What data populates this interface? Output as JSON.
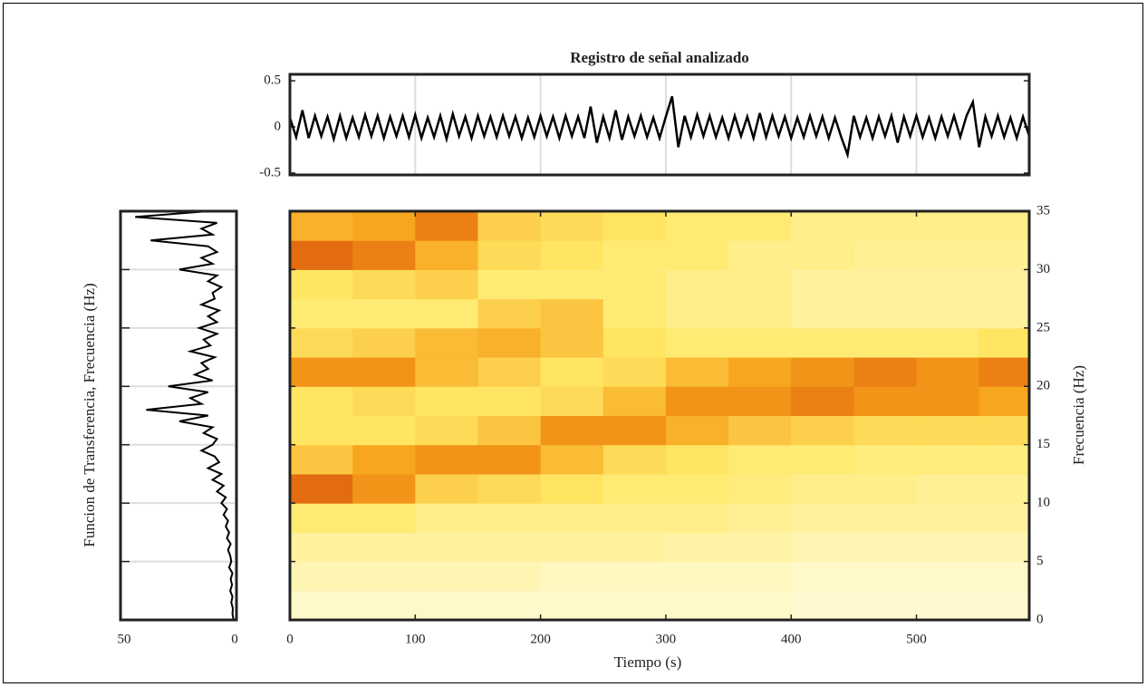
{
  "chart_data": [
    {
      "type": "line",
      "title": "Registro de señal analizado",
      "color": "#000000",
      "grid": true,
      "xlim": [
        0,
        590
      ],
      "ylim": [
        -0.52,
        0.57
      ],
      "yticks": [
        0.5,
        0,
        -0.5
      ],
      "x": [
        0,
        5,
        10,
        15,
        20,
        25,
        30,
        35,
        40,
        45,
        50,
        55,
        60,
        65,
        70,
        75,
        80,
        85,
        90,
        95,
        100,
        105,
        110,
        115,
        120,
        125,
        130,
        135,
        140,
        145,
        150,
        155,
        160,
        165,
        170,
        175,
        180,
        185,
        190,
        195,
        200,
        205,
        210,
        215,
        220,
        225,
        230,
        235,
        240,
        245,
        250,
        255,
        260,
        265,
        270,
        275,
        280,
        285,
        290,
        295,
        300,
        305,
        310,
        315,
        320,
        325,
        330,
        335,
        340,
        345,
        350,
        355,
        360,
        365,
        370,
        375,
        380,
        385,
        390,
        395,
        400,
        405,
        410,
        415,
        420,
        425,
        430,
        435,
        440,
        445,
        450,
        455,
        460,
        465,
        470,
        475,
        480,
        485,
        490,
        495,
        500,
        505,
        510,
        515,
        520,
        525,
        530,
        535,
        540,
        545,
        550,
        555,
        560,
        565,
        570,
        575,
        580,
        585,
        590
      ],
      "values": [
        0.1,
        -0.11,
        0.18,
        -0.12,
        0.12,
        -0.1,
        0.11,
        -0.13,
        0.12,
        -0.12,
        0.1,
        -0.11,
        0.13,
        -0.1,
        0.12,
        -0.12,
        0.11,
        -0.1,
        0.12,
        -0.11,
        0.13,
        -0.12,
        0.1,
        -0.11,
        0.12,
        -0.13,
        0.14,
        -0.1,
        0.11,
        -0.12,
        0.12,
        -0.1,
        0.11,
        -0.11,
        0.12,
        -0.1,
        0.11,
        -0.12,
        0.1,
        -0.11,
        0.12,
        -0.1,
        0.11,
        -0.12,
        0.12,
        -0.1,
        0.11,
        -0.12,
        0.22,
        -0.17,
        0.11,
        -0.12,
        0.18,
        -0.14,
        0.11,
        -0.1,
        0.12,
        -0.11,
        0.1,
        -0.12,
        0.11,
        0.33,
        -0.22,
        0.12,
        -0.11,
        0.13,
        -0.1,
        0.12,
        -0.11,
        0.1,
        -0.12,
        0.12,
        -0.1,
        0.11,
        -0.12,
        0.15,
        -0.11,
        0.12,
        -0.1,
        0.11,
        -0.12,
        0.1,
        -0.11,
        0.12,
        -0.1,
        0.11,
        -0.12,
        0.1,
        -0.11,
        -0.3,
        0.12,
        -0.11,
        0.1,
        -0.12,
        0.11,
        -0.1,
        0.12,
        -0.17,
        0.11,
        -0.1,
        0.12,
        -0.11,
        0.1,
        -0.12,
        0.11,
        -0.1,
        0.12,
        -0.11,
        0.12,
        0.27,
        -0.22,
        0.11,
        -0.1,
        0.12,
        -0.11,
        0.1,
        -0.12,
        0.11,
        -0.1
      ]
    },
    {
      "type": "line",
      "orientation": "horizontal",
      "ylabel": "Funcion de Transferencia, Frecuencia (Hz)",
      "color": "#000000",
      "grid": true,
      "xlim": [
        50,
        0
      ],
      "xticks": [
        50,
        0
      ],
      "ylim": [
        0,
        35
      ],
      "frequency": [
        0,
        0.5,
        1,
        1.5,
        2,
        2.5,
        3,
        3.5,
        4,
        4.5,
        5,
        5.5,
        6,
        6.5,
        7,
        7.5,
        8,
        8.5,
        9,
        9.5,
        10,
        10.5,
        11,
        11.5,
        12,
        12.5,
        13,
        13.5,
        14,
        14.5,
        15,
        15.5,
        16,
        16.5,
        17,
        17.5,
        18,
        18.5,
        19,
        19.5,
        20,
        20.5,
        21,
        21.5,
        22,
        22.5,
        23,
        23.5,
        24,
        24.5,
        25,
        25.5,
        26,
        26.5,
        27,
        27.5,
        28,
        28.5,
        29,
        29.5,
        30,
        30.5,
        31,
        31.5,
        32,
        32.5,
        33,
        33.5,
        34,
        34.5,
        35
      ],
      "values": [
        0.5,
        1,
        0.8,
        1.5,
        1,
        2,
        1.2,
        1.8,
        1,
        2.5,
        1.5,
        2,
        3,
        1.8,
        3.5,
        2.5,
        4,
        3,
        5,
        3.5,
        6,
        4,
        8,
        5,
        10,
        6,
        12,
        7,
        9,
        15,
        10,
        8,
        14,
        10,
        25,
        12,
        40,
        15,
        20,
        12,
        30,
        10,
        18,
        12,
        15,
        9,
        20,
        11,
        14,
        8,
        16,
        8,
        12,
        7,
        15,
        9,
        10,
        6,
        12,
        8,
        25,
        10,
        15,
        8,
        12,
        38,
        10,
        15,
        8,
        45,
        12
      ]
    },
    {
      "type": "heatmap",
      "xlabel": "Tiempo (s)",
      "ylabel": "Frecuencia (Hz)",
      "xlim": [
        0,
        590
      ],
      "ylim": [
        0,
        35
      ],
      "xticks": [
        0,
        100,
        200,
        300,
        400,
        500
      ],
      "yticks": [
        0,
        5,
        10,
        15,
        20,
        25,
        30,
        35
      ],
      "colormap": [
        "#fffff2",
        "#ffe866",
        "#f7a21b",
        "#c81a00"
      ],
      "x_bins": [
        0,
        50,
        100,
        150,
        200,
        250,
        300,
        350,
        400,
        450,
        500,
        550,
        590
      ],
      "y_bins": [
        0,
        2.5,
        5,
        7.5,
        10,
        12.5,
        15,
        17.5,
        20,
        22.5,
        25,
        27.5,
        30,
        32.5,
        35
      ],
      "z": [
        [
          0.1,
          0.15,
          0.2,
          0.3,
          0.8,
          0.5,
          0.35,
          0.35,
          0.7,
          0.4,
          0.3,
          0.35,
          0.8,
          0.6
        ],
        [
          0.1,
          0.15,
          0.2,
          0.3,
          0.7,
          0.65,
          0.35,
          0.4,
          0.7,
          0.45,
          0.3,
          0.4,
          0.75,
          0.65
        ],
        [
          0.1,
          0.15,
          0.2,
          0.25,
          0.45,
          0.7,
          0.4,
          0.35,
          0.55,
          0.55,
          0.3,
          0.45,
          0.6,
          0.75
        ],
        [
          0.1,
          0.15,
          0.2,
          0.25,
          0.4,
          0.7,
          0.5,
          0.35,
          0.45,
          0.6,
          0.45,
          0.3,
          0.4,
          0.45
        ],
        [
          0.1,
          0.12,
          0.2,
          0.25,
          0.35,
          0.55,
          0.7,
          0.4,
          0.35,
          0.5,
          0.5,
          0.3,
          0.35,
          0.4
        ],
        [
          0.1,
          0.12,
          0.2,
          0.25,
          0.3,
          0.4,
          0.7,
          0.55,
          0.4,
          0.35,
          0.3,
          0.3,
          0.3,
          0.35
        ],
        [
          0.1,
          0.12,
          0.18,
          0.25,
          0.3,
          0.35,
          0.6,
          0.7,
          0.55,
          0.3,
          0.25,
          0.25,
          0.3,
          0.3
        ],
        [
          0.1,
          0.12,
          0.18,
          0.22,
          0.28,
          0.3,
          0.5,
          0.7,
          0.65,
          0.3,
          0.25,
          0.25,
          0.25,
          0.3
        ],
        [
          0.08,
          0.1,
          0.15,
          0.2,
          0.25,
          0.3,
          0.45,
          0.75,
          0.7,
          0.3,
          0.2,
          0.2,
          0.25,
          0.25
        ],
        [
          0.08,
          0.1,
          0.15,
          0.2,
          0.25,
          0.28,
          0.4,
          0.7,
          0.75,
          0.3,
          0.2,
          0.2,
          0.22,
          0.25
        ],
        [
          0.08,
          0.1,
          0.15,
          0.2,
          0.22,
          0.28,
          0.4,
          0.7,
          0.7,
          0.3,
          0.2,
          0.2,
          0.22,
          0.25
        ],
        [
          0.08,
          0.1,
          0.15,
          0.2,
          0.22,
          0.28,
          0.4,
          0.65,
          0.75,
          0.35,
          0.2,
          0.2,
          0.22,
          0.25
        ]
      ]
    }
  ]
}
